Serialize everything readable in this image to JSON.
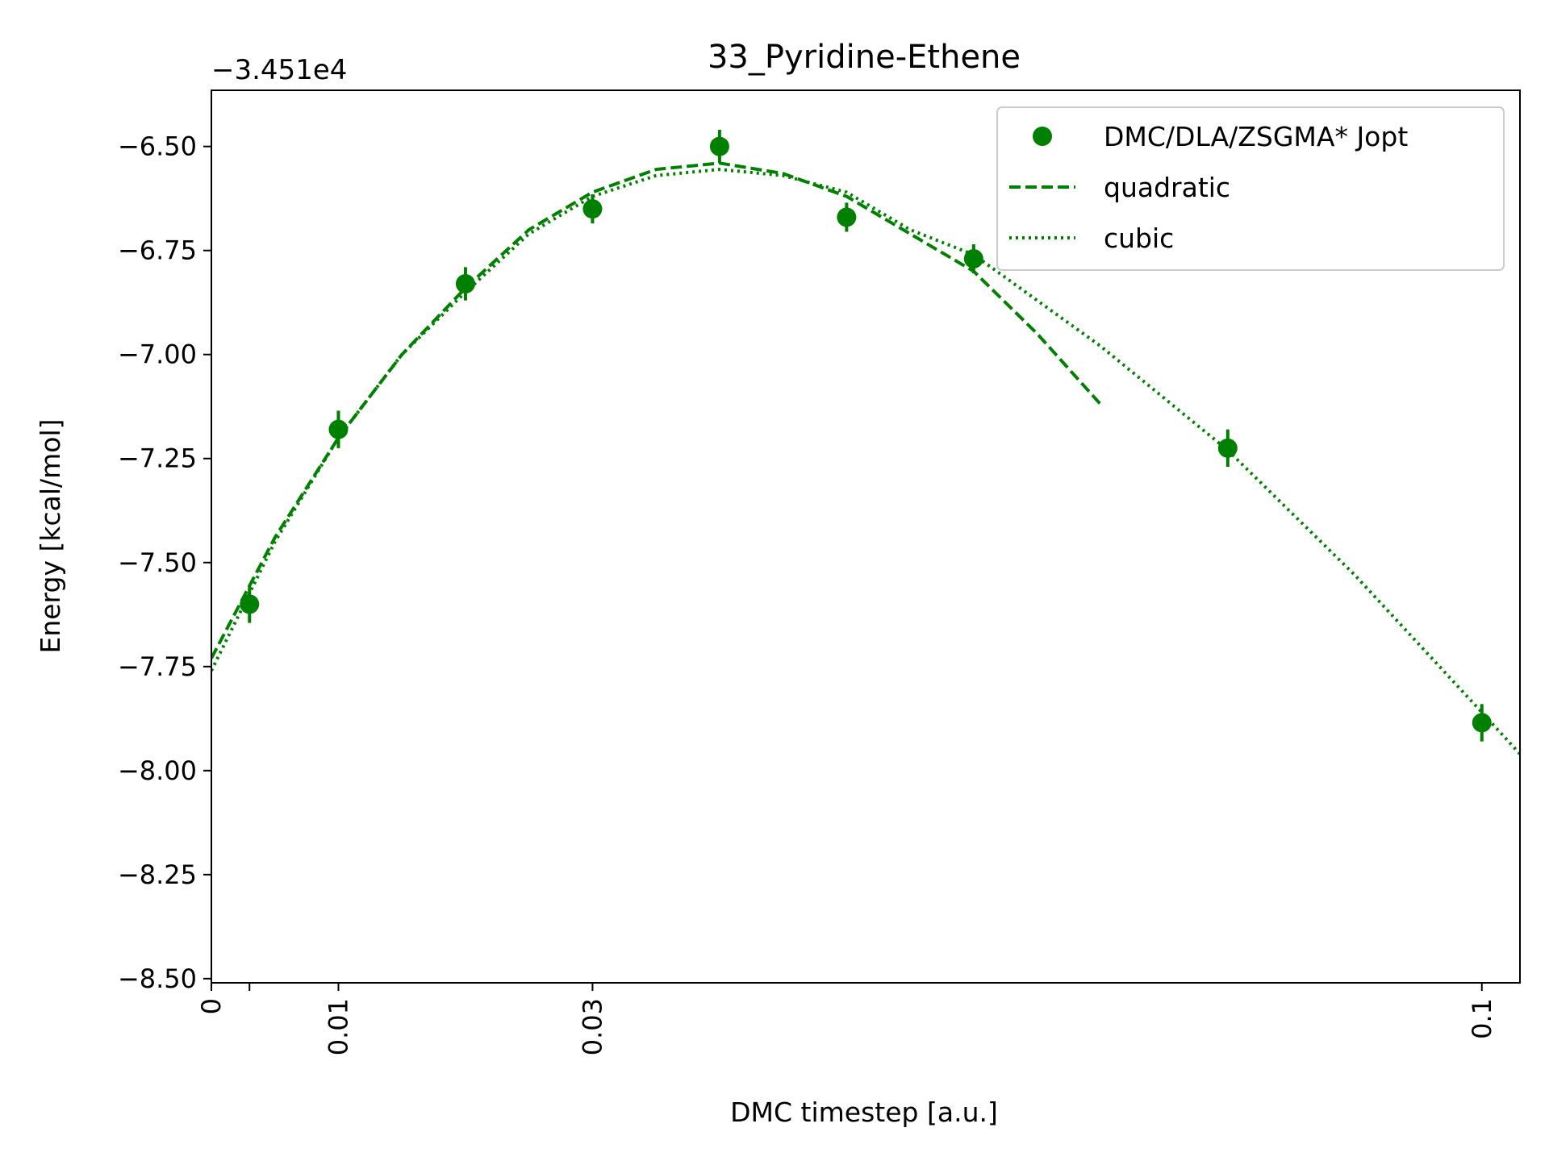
{
  "chart_data": {
    "type": "scatter",
    "title": "33_Pyridine-Ethene",
    "xlabel": "DMC timestep [a.u.]",
    "ylabel": "Energy [kcal/mol]",
    "y_offset_label": "−3.451e4",
    "xlim": [
      0,
      0.103
    ],
    "ylim": [
      -8.51,
      -6.365
    ],
    "xticks": [
      {
        "value": 0,
        "label": "0"
      },
      {
        "value": 0.003,
        "label": ""
      },
      {
        "value": 0.01,
        "label": "0.01"
      },
      {
        "value": 0.03,
        "label": "0.03"
      },
      {
        "value": 0.1,
        "label": "0.1"
      }
    ],
    "yticks": [
      {
        "value": -6.5,
        "label": "−6.50"
      },
      {
        "value": -6.75,
        "label": "−6.75"
      },
      {
        "value": -7.0,
        "label": "−7.00"
      },
      {
        "value": -7.25,
        "label": "−7.25"
      },
      {
        "value": -7.5,
        "label": "−7.50"
      },
      {
        "value": -7.75,
        "label": "−7.75"
      },
      {
        "value": -8.0,
        "label": "−8.00"
      },
      {
        "value": -8.25,
        "label": "−8.25"
      },
      {
        "value": -8.5,
        "label": "−8.50"
      }
    ],
    "color": "#008000",
    "legend_position": "top-right",
    "series": [
      {
        "name": "DMC/DLA/ZSGMA* Jopt",
        "kind": "errorbar",
        "x": [
          0.003,
          0.01,
          0.02,
          0.03,
          0.04,
          0.05,
          0.06,
          0.08,
          0.1
        ],
        "y": [
          -7.6,
          -7.18,
          -6.83,
          -6.65,
          -6.5,
          -6.67,
          -6.77,
          -7.225,
          -7.885
        ],
        "yerr": [
          0.045,
          0.045,
          0.04,
          0.035,
          0.04,
          0.035,
          0.035,
          0.045,
          0.045
        ]
      },
      {
        "name": "quadratic",
        "kind": "line",
        "dash": "dashed",
        "x": [
          0.0,
          0.005,
          0.01,
          0.015,
          0.02,
          0.025,
          0.03,
          0.035,
          0.04,
          0.045,
          0.05,
          0.055,
          0.06,
          0.065,
          0.07
        ],
        "y": [
          -7.73,
          -7.44,
          -7.2,
          -7.0,
          -6.84,
          -6.7,
          -6.61,
          -6.555,
          -6.54,
          -6.565,
          -6.62,
          -6.71,
          -6.8,
          -6.95,
          -7.12
        ]
      },
      {
        "name": "cubic",
        "kind": "line",
        "dash": "dotted",
        "x": [
          0.0,
          0.005,
          0.01,
          0.015,
          0.02,
          0.025,
          0.03,
          0.035,
          0.04,
          0.045,
          0.05,
          0.055,
          0.06,
          0.07,
          0.08,
          0.09,
          0.1,
          0.103
        ],
        "y": [
          -7.76,
          -7.45,
          -7.2,
          -7.0,
          -6.85,
          -6.71,
          -6.62,
          -6.57,
          -6.555,
          -6.57,
          -6.61,
          -6.7,
          -6.76,
          -6.98,
          -7.23,
          -7.53,
          -7.86,
          -7.96
        ]
      }
    ]
  }
}
